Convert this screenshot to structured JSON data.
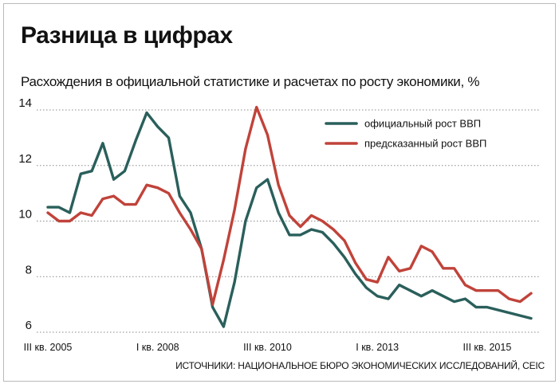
{
  "title": "Разница в цифрах",
  "subtitle": "Расхождения в официальной статистике и расчетах по росту экономики, %",
  "source": "ИСТОЧНИКИ: НАЦИОНАЛЬНОЕ БЮРО ЭКОНОМИЧЕСКИХ ИССЛЕДОВАНИЙ, CEIC",
  "chart_data": {
    "type": "line",
    "ylim": [
      6,
      14
    ],
    "yticks": [
      "6",
      "8",
      "10",
      "12",
      "14"
    ],
    "ytick_values": [
      6,
      8,
      10,
      12,
      14
    ],
    "x_labels": [
      "III кв. 2005",
      "I кв. 2008",
      "III кв. 2010",
      "I кв. 2013",
      "III кв. 2015"
    ],
    "x_label_indices": [
      0,
      10,
      20,
      30,
      40
    ],
    "grid": "horizontal dotted",
    "legend_position": "top-right",
    "series": [
      {
        "name": "официальный рост ВВП",
        "color": "#2a5f5b",
        "values": [
          10.5,
          10.5,
          10.3,
          11.7,
          11.8,
          12.8,
          11.5,
          11.8,
          12.9,
          13.9,
          13.4,
          13.0,
          10.9,
          10.3,
          9.0,
          6.9,
          6.2,
          7.8,
          10.0,
          11.2,
          11.5,
          10.3,
          9.5,
          9.5,
          9.7,
          9.6,
          9.2,
          8.7,
          8.1,
          7.6,
          7.3,
          7.2,
          7.7,
          7.5,
          7.3,
          7.5,
          7.3,
          7.1,
          7.2,
          6.9,
          6.9,
          6.8,
          6.7,
          6.6,
          6.5
        ]
      },
      {
        "name": "предсказанный рост ВВП",
        "color": "#c0433a",
        "values": [
          10.3,
          10.0,
          10.0,
          10.3,
          10.2,
          10.8,
          10.9,
          10.6,
          10.6,
          11.3,
          11.2,
          11.0,
          10.3,
          9.7,
          9.0,
          7.0,
          8.6,
          10.4,
          12.6,
          14.1,
          13.1,
          11.3,
          10.2,
          9.8,
          10.2,
          10.0,
          9.7,
          9.3,
          8.5,
          7.9,
          7.8,
          8.7,
          8.2,
          8.3,
          9.1,
          8.9,
          8.3,
          8.3,
          7.7,
          7.5,
          7.5,
          7.5,
          7.2,
          7.1,
          7.4
        ]
      }
    ]
  }
}
